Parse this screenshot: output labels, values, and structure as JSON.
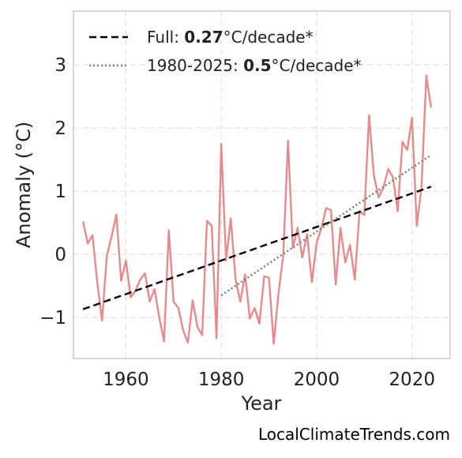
{
  "chart_data": {
    "type": "line",
    "xlabel": "Year",
    "ylabel": "Anomaly (°C)",
    "xlim": [
      1949,
      2028
    ],
    "ylim": [
      -1.65,
      3.85
    ],
    "xticks": [
      1960,
      1980,
      2000,
      2020
    ],
    "yticks": [
      -1,
      0,
      1,
      2,
      3
    ],
    "ytick_labels": [
      "−1",
      "0",
      "1",
      "2",
      "3"
    ],
    "grid": true,
    "legend_position": "top-left",
    "series": [
      {
        "style": "solid",
        "color": "#e8898b",
        "x": [
          1951,
          1952,
          1953,
          1954,
          1955,
          1956,
          1957,
          1958,
          1959,
          1960,
          1961,
          1962,
          1963,
          1964,
          1965,
          1966,
          1967,
          1968,
          1969,
          1970,
          1971,
          1972,
          1973,
          1974,
          1975,
          1976,
          1977,
          1978,
          1979,
          1980,
          1981,
          1982,
          1983,
          1984,
          1985,
          1986,
          1987,
          1988,
          1989,
          1990,
          1991,
          1992,
          1993,
          1994,
          1995,
          1996,
          1997,
          1998,
          1999,
          2000,
          2001,
          2002,
          2003,
          2004,
          2005,
          2006,
          2007,
          2008,
          2009,
          2010,
          2011,
          2012,
          2013,
          2014,
          2015,
          2016,
          2017,
          2018,
          2019,
          2020,
          2021,
          2022,
          2023,
          2024
        ],
        "values": [
          0.52,
          0.17,
          0.3,
          -0.45,
          -1.05,
          -0.03,
          0.28,
          0.63,
          -0.42,
          -0.1,
          -0.68,
          -0.58,
          -0.4,
          -0.3,
          -0.75,
          -0.55,
          -1.0,
          -1.38,
          0.38,
          -0.75,
          -0.85,
          -1.2,
          -1.4,
          -0.73,
          -1.15,
          -1.28,
          0.53,
          0.45,
          -1.33,
          1.75,
          -0.1,
          0.57,
          -0.4,
          -0.75,
          -0.32,
          -1.02,
          -0.85,
          -1.1,
          -0.35,
          -0.37,
          -1.42,
          -0.62,
          -0.02,
          1.8,
          0.1,
          0.42,
          -0.05,
          0.32,
          -0.44,
          0.18,
          0.42,
          0.73,
          0.7,
          -0.48,
          0.42,
          -0.13,
          0.15,
          -0.4,
          0.68,
          0.62,
          2.2,
          1.25,
          0.9,
          1.05,
          1.35,
          1.22,
          0.68,
          1.78,
          1.65,
          2.16,
          0.45,
          1.07,
          2.83,
          2.32
        ]
      },
      {
        "name": "Full",
        "style": "dashed",
        "color": "#000000",
        "x": [
          1951,
          2024
        ],
        "values": [
          -0.87,
          1.07
        ],
        "rate_value": "0.27",
        "rate_unit": "°C/decade*"
      },
      {
        "name": "1980-2025",
        "style": "dotted",
        "color": "#7f7f7f",
        "x": [
          1980,
          2024
        ],
        "values": [
          -0.65,
          1.57
        ],
        "rate_value": "0.5",
        "rate_unit": "°C/decade*"
      }
    ]
  },
  "legend": {
    "full_prefix": "Full: ",
    "full_rate": "0.27",
    "full_unit": "°C/decade*",
    "recent_prefix": "1980-2025: ",
    "recent_rate": "0.5",
    "recent_unit": "°C/decade*"
  },
  "source_label": "LocalClimateTrends.com"
}
